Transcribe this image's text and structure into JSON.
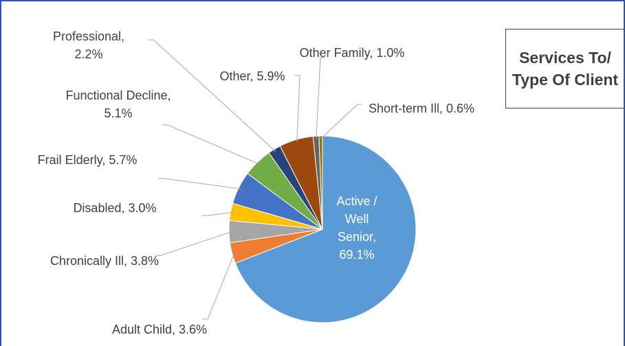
{
  "chart_data": {
    "type": "pie",
    "title": "Services To/ Type Of Client",
    "categories": [
      "Active / Well Senior",
      "Adult Child",
      "Chronically Ill",
      "Disabled",
      "Frail Elderly",
      "Functional Decline",
      "Professional",
      "Other",
      "Other Family",
      "Short-term Ill"
    ],
    "values": [
      69.1,
      3.6,
      3.8,
      3.0,
      5.7,
      5.1,
      2.2,
      5.9,
      1.0,
      0.6
    ],
    "value_labels": [
      "69.1%",
      "3.6%",
      "3.8%",
      "3.0%",
      "5.7%",
      "5.1%",
      "2.2%",
      "5.9%",
      "1.0%",
      "0.6%"
    ],
    "colors": [
      "#5b9bd5",
      "#ed7d31",
      "#a5a5a5",
      "#ffc000",
      "#4472c4",
      "#70ad47",
      "#264478",
      "#9e480e",
      "#636363",
      "#997300"
    ]
  }
}
